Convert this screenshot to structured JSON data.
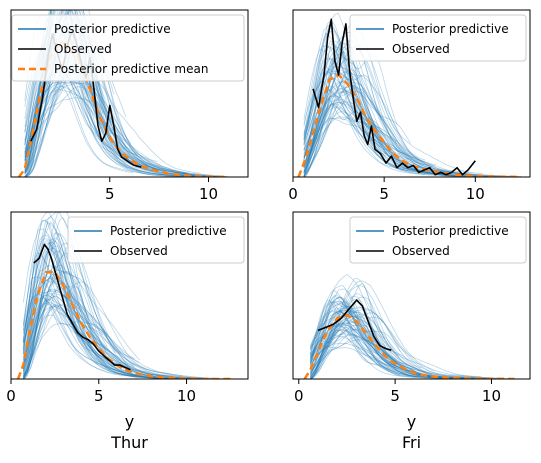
{
  "colors": {
    "predictive": "#1f77b4",
    "observed": "#000000",
    "mean": "#ff7f0e"
  },
  "chart_data": [
    {
      "type": "line",
      "panel": "top-left",
      "title": "",
      "xlabel": "",
      "xlim": [
        0,
        12
      ],
      "ylim": [
        0,
        0.42
      ],
      "xticks": [
        5,
        10
      ],
      "xtick_labels": [
        "5",
        "10"
      ],
      "grid": false,
      "legend_position": "top-right",
      "legend": [
        "Posterior predictive",
        "Observed",
        "Posterior predictive mean"
      ],
      "series": [
        {
          "name": "Observed",
          "x": [
            1.0,
            1.3,
            1.6,
            1.9,
            2.1,
            2.3,
            2.6,
            2.9,
            3.1,
            3.3,
            3.6,
            3.8,
            4.0,
            4.2,
            4.4,
            4.6,
            4.8,
            5.0,
            5.2,
            5.4,
            5.6,
            5.9,
            6.2,
            6.6
          ],
          "y": [
            0.09,
            0.12,
            0.2,
            0.31,
            0.36,
            0.32,
            0.27,
            0.34,
            0.37,
            0.34,
            0.28,
            0.25,
            0.3,
            0.22,
            0.13,
            0.09,
            0.11,
            0.18,
            0.13,
            0.07,
            0.05,
            0.04,
            0.03,
            0.025
          ]
        },
        {
          "name": "Posterior predictive mean",
          "x": [
            0.4,
            0.7,
            1.0,
            1.5,
            2.0,
            2.5,
            3.0,
            3.5,
            4.0,
            4.5,
            5.0,
            5.5,
            6.0,
            6.5,
            7.0,
            8.0,
            9.0,
            10.0,
            11.0
          ],
          "y": [
            0.0,
            0.02,
            0.09,
            0.21,
            0.3,
            0.34,
            0.33,
            0.29,
            0.22,
            0.15,
            0.1,
            0.065,
            0.045,
            0.03,
            0.02,
            0.008,
            0.003,
            0.001,
            0.0
          ]
        }
      ]
    },
    {
      "type": "line",
      "panel": "top-right",
      "title": "",
      "xlabel": "",
      "xlim": [
        0,
        13
      ],
      "ylim": [
        0,
        0.36
      ],
      "xticks": [
        0,
        5,
        10
      ],
      "xtick_labels": [
        "0",
        "5",
        "10"
      ],
      "grid": false,
      "legend_position": "top-right",
      "legend": [
        "Posterior predictive",
        "Observed"
      ],
      "series": [
        {
          "name": "Observed",
          "x": [
            1.1,
            1.4,
            1.7,
            1.9,
            2.1,
            2.3,
            2.5,
            2.7,
            2.9,
            3.1,
            3.3,
            3.5,
            3.7,
            3.9,
            4.1,
            4.3,
            4.5,
            4.8,
            5.1,
            5.4,
            5.7,
            6.0,
            6.3,
            6.6,
            6.9,
            7.2,
            7.5,
            7.8,
            8.1,
            8.4,
            8.7,
            9.0,
            9.3,
            9.6,
            10.0
          ],
          "y": [
            0.19,
            0.15,
            0.22,
            0.3,
            0.34,
            0.25,
            0.22,
            0.29,
            0.33,
            0.23,
            0.17,
            0.12,
            0.14,
            0.09,
            0.07,
            0.11,
            0.06,
            0.05,
            0.03,
            0.045,
            0.02,
            0.03,
            0.02,
            0.025,
            0.01,
            0.015,
            0.02,
            0.005,
            0.01,
            0.005,
            0.01,
            0.02,
            0.005,
            0.015,
            0.035
          ]
        },
        {
          "name": "Posterior predictive mean",
          "x": [
            0.3,
            0.6,
            1.0,
            1.5,
            2.0,
            2.5,
            3.0,
            3.5,
            4.0,
            4.5,
            5.0,
            5.5,
            6.0,
            6.5,
            7.0,
            8.0,
            9.0,
            10.0,
            11.0,
            12.5
          ],
          "y": [
            0.0,
            0.03,
            0.08,
            0.15,
            0.21,
            0.22,
            0.2,
            0.17,
            0.13,
            0.1,
            0.075,
            0.05,
            0.035,
            0.025,
            0.018,
            0.01,
            0.005,
            0.002,
            0.001,
            0.0
          ]
        }
      ]
    },
    {
      "type": "line",
      "panel": "bottom-left",
      "title": "Thur",
      "xlabel": "y",
      "xlim": [
        0,
        13.5
      ],
      "ylim": [
        0,
        0.36
      ],
      "xticks": [
        0,
        5,
        10
      ],
      "xtick_labels": [
        "0",
        "5",
        "10"
      ],
      "grid": false,
      "legend_position": "top-right",
      "legend": [
        "Posterior predictive",
        "Observed"
      ],
      "series": [
        {
          "name": "Observed",
          "x": [
            1.3,
            1.6,
            1.9,
            2.1,
            2.3,
            2.6,
            2.9,
            3.2,
            3.5,
            3.8,
            4.1,
            4.4,
            4.7,
            5.0,
            5.3,
            5.6,
            5.9,
            6.2,
            6.5,
            6.8
          ],
          "y": [
            0.25,
            0.26,
            0.29,
            0.28,
            0.26,
            0.22,
            0.18,
            0.14,
            0.12,
            0.1,
            0.09,
            0.085,
            0.075,
            0.06,
            0.05,
            0.04,
            0.03,
            0.03,
            0.025,
            0.02
          ]
        },
        {
          "name": "Posterior predictive mean",
          "x": [
            0.4,
            0.7,
            1.0,
            1.5,
            2.0,
            2.5,
            3.0,
            3.5,
            4.0,
            4.5,
            5.0,
            5.5,
            6.0,
            6.5,
            7.0,
            8.0,
            9.0,
            10.0,
            11.0,
            12.5
          ],
          "y": [
            0.0,
            0.03,
            0.09,
            0.18,
            0.23,
            0.23,
            0.2,
            0.16,
            0.12,
            0.09,
            0.065,
            0.045,
            0.03,
            0.02,
            0.013,
            0.006,
            0.003,
            0.001,
            0.0,
            0.0
          ]
        }
      ]
    },
    {
      "type": "line",
      "panel": "bottom-right",
      "title": "Fri",
      "xlabel": "y",
      "xlim": [
        -0.3,
        12
      ],
      "ylim": [
        0,
        0.55
      ],
      "xticks": [
        0,
        5,
        10
      ],
      "xtick_labels": [
        "0",
        "5",
        "10"
      ],
      "grid": false,
      "legend_position": "top-right",
      "legend": [
        "Posterior predictive",
        "Observed"
      ],
      "series": [
        {
          "name": "Observed",
          "x": [
            1.0,
            1.4,
            1.8,
            2.2,
            2.6,
            3.0,
            3.3,
            3.6,
            3.9,
            4.2,
            4.5,
            4.8
          ],
          "y": [
            0.16,
            0.17,
            0.18,
            0.2,
            0.23,
            0.26,
            0.24,
            0.19,
            0.14,
            0.11,
            0.1,
            0.095
          ]
        },
        {
          "name": "Posterior predictive mean",
          "x": [
            0.3,
            0.6,
            1.0,
            1.5,
            2.0,
            2.5,
            3.0,
            3.5,
            4.0,
            4.5,
            5.0,
            5.5,
            6.0,
            6.5,
            7.0,
            8.0,
            9.0,
            10.0,
            11.2
          ],
          "y": [
            0.0,
            0.03,
            0.09,
            0.16,
            0.2,
            0.21,
            0.19,
            0.15,
            0.11,
            0.075,
            0.05,
            0.033,
            0.02,
            0.012,
            0.008,
            0.004,
            0.002,
            0.001,
            0.0
          ]
        }
      ]
    }
  ]
}
